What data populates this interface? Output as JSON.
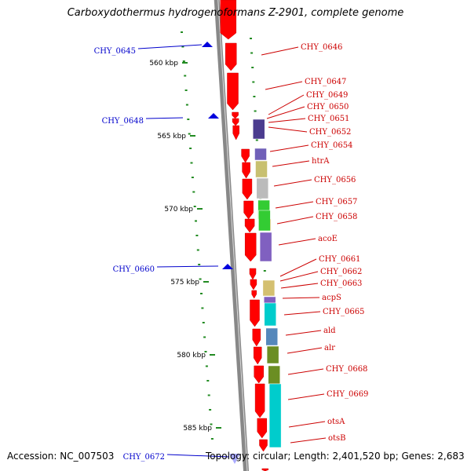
{
  "title": "Carboxydothermus hydrogenoformans Z-2901, complete genome",
  "accession": "Accession: NC_007503",
  "topology": "Topology: circular; Length: 2,401,520 bp; Genes: 2,683",
  "colors": {
    "gene_arrow": "#ff0000",
    "right_label": "#cc0000",
    "left_label": "#0000cc",
    "tick": "#228b22",
    "backbone": "#888888"
  },
  "scale_ticks": [
    {
      "label": "560 kbp"
    },
    {
      "label": "565 kbp"
    },
    {
      "label": "570 kbp"
    },
    {
      "label": "575 kbp"
    },
    {
      "label": "580 kbp"
    },
    {
      "label": "585 kbp"
    }
  ],
  "left_genes": [
    {
      "label": "CHY_0645"
    },
    {
      "label": "CHY_0648"
    },
    {
      "label": "CHY_0660"
    },
    {
      "label": "CHY_0672"
    }
  ],
  "right_genes": [
    {
      "label": "CHY_0646"
    },
    {
      "label": "CHY_0647"
    },
    {
      "label": "CHY_0649"
    },
    {
      "label": "CHY_0650"
    },
    {
      "label": "CHY_0651"
    },
    {
      "label": "CHY_0652"
    },
    {
      "label": "CHY_0654"
    },
    {
      "label": "htrA"
    },
    {
      "label": "CHY_0656"
    },
    {
      "label": "CHY_0657"
    },
    {
      "label": "CHY_0658"
    },
    {
      "label": "acoE"
    },
    {
      "label": "CHY_0661"
    },
    {
      "label": "CHY_0662"
    },
    {
      "label": "CHY_0663"
    },
    {
      "label": "acpS"
    },
    {
      "label": "CHY_0665"
    },
    {
      "label": "ald"
    },
    {
      "label": "alr"
    },
    {
      "label": "CHY_0668"
    },
    {
      "label": "CHY_0669"
    },
    {
      "label": "otsA"
    },
    {
      "label": "otsB"
    }
  ],
  "cog_colors": [
    "#4b3c8f",
    "#6b5fb0",
    "#c8c070",
    "#bbbbbb",
    "#33cc33",
    "#ff8c00",
    "#8060c0",
    "#d4c070",
    "#00cccc",
    "#5588bb",
    "#6b8e23"
  ]
}
